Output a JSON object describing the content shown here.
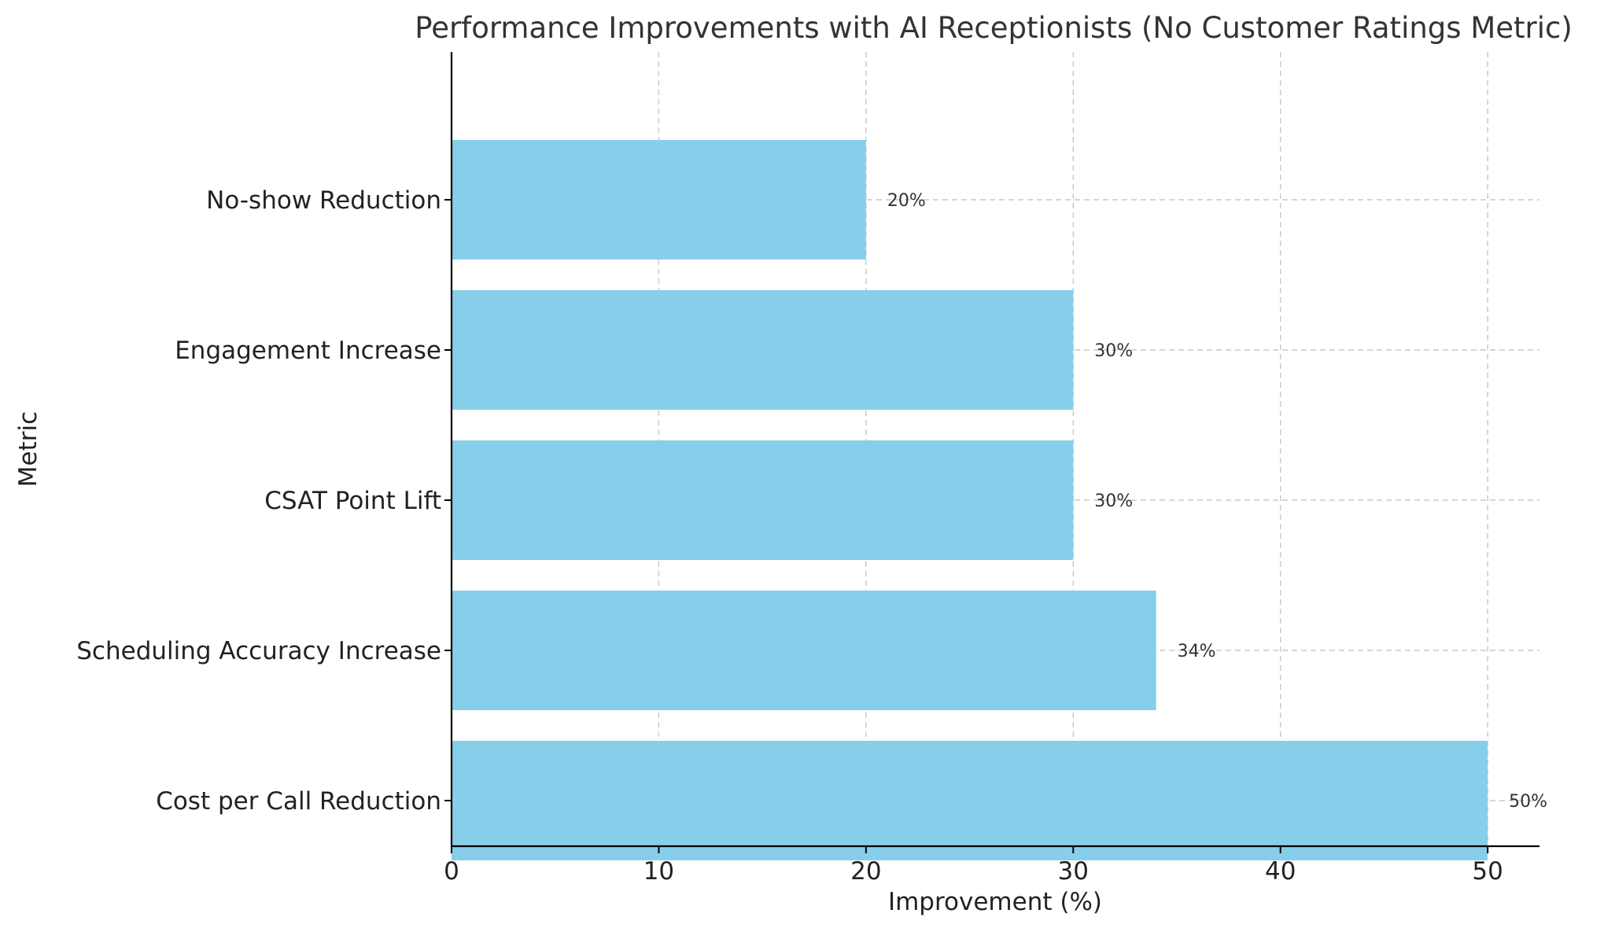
{
  "chart_data": {
    "type": "bar",
    "orientation": "horizontal",
    "title": "Performance Improvements with AI Receptionists (No Customer Ratings Metric)",
    "xlabel": "Improvement (%)",
    "ylabel": "Metric",
    "categories": [
      "Cost per Call Reduction",
      "Scheduling Accuracy Increase",
      "CSAT Point Lift",
      "Engagement Increase",
      "No-show Reduction"
    ],
    "values": [
      50,
      34,
      30,
      30,
      20
    ],
    "data_labels": [
      "50%",
      "34%",
      "30%",
      "30%",
      "20%"
    ],
    "xlim": [
      0,
      52.5
    ],
    "x_ticks": [
      0,
      10,
      20,
      30,
      40,
      50
    ],
    "x_tick_labels": [
      "0",
      "10",
      "20",
      "30",
      "40",
      "50"
    ],
    "bar_color": "#87ceeb",
    "grid": true
  }
}
